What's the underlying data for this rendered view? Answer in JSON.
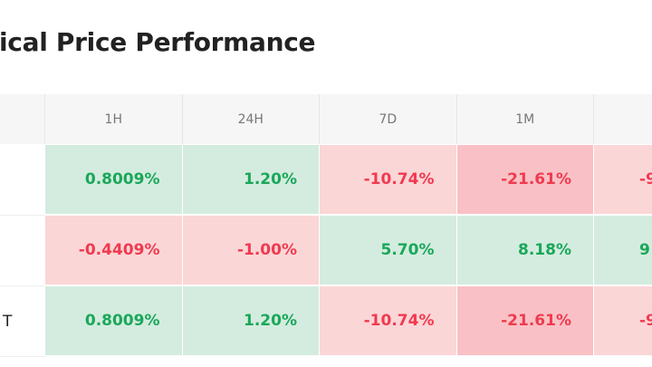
{
  "header": {
    "title": "ical Price Performance"
  },
  "table": {
    "columns": [
      "1H",
      "24H",
      "7D",
      "1M"
    ],
    "rows": [
      {
        "cells": [
          "0.8009%",
          "1.20%",
          "-10.74%",
          "-21.61%",
          "-9"
        ]
      },
      {
        "cells": [
          "-0.4409%",
          "-1.00%",
          "5.70%",
          "8.18%",
          "9"
        ]
      },
      {
        "label": "T",
        "cells": [
          "0.8009%",
          "1.20%",
          "-10.74%",
          "-21.61%",
          "-9"
        ]
      }
    ]
  }
}
